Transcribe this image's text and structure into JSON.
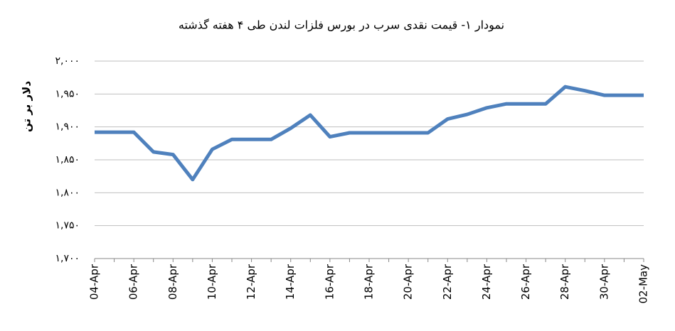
{
  "chart_data": {
    "type": "line",
    "title": "نمودار ۱- قیمت نقدی سرب  در بورس فلزات لندن طی ۴ هفته گذشته",
    "y_label": "دلار بر تن",
    "categories": [
      "04-Apr",
      null,
      "06-Apr",
      null,
      "08-Apr",
      null,
      "10-Apr",
      null,
      "12-Apr",
      null,
      "14-Apr",
      null,
      "16-Apr",
      null,
      "18-Apr",
      null,
      "20-Apr",
      null,
      "22-Apr",
      null,
      "24-Apr",
      null,
      "26-Apr",
      null,
      "28-Apr",
      null,
      "30-Apr",
      null,
      "02-May"
    ],
    "values": [
      1892,
      1892,
      1892,
      1862,
      1858,
      1820,
      1866,
      1881,
      1881,
      1881,
      1898,
      1918,
      1885,
      1891,
      1891,
      1891,
      1891,
      1891,
      1912,
      1919,
      1929,
      1935,
      1935,
      1935,
      1961,
      1955,
      1948,
      1948,
      1948
    ],
    "color": "#4f81bd",
    "ylim": [
      1700,
      2000
    ],
    "yticks": [
      {
        "value": 1700,
        "label": "۱,۷۰۰"
      },
      {
        "value": 1750,
        "label": "۱,۷۵۰"
      },
      {
        "value": 1800,
        "label": "۱,۸۰۰"
      },
      {
        "value": 1850,
        "label": "۱,۸۵۰"
      },
      {
        "value": 1900,
        "label": "۱,۹۰۰"
      },
      {
        "value": 1950,
        "label": "۱,۹۵۰"
      },
      {
        "value": 2000,
        "label": "۲,۰۰۰"
      }
    ],
    "grid": true
  }
}
